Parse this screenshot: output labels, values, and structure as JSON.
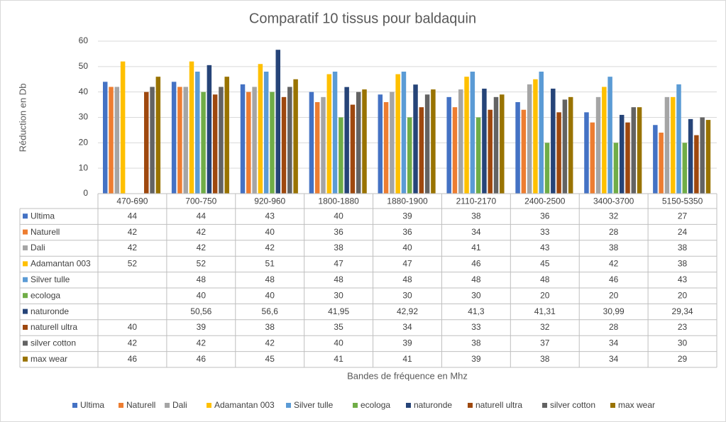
{
  "chart_data": {
    "type": "bar",
    "title": "Comparatif 10 tissus pour baldaquin",
    "y_label": "Réduction en Db",
    "x_label": "Bandes de fréquence en Mhz",
    "categories": [
      "470-690",
      "700-750",
      "920-960",
      "1800-1880",
      "1880-1900",
      "2110-2170",
      "2400-2500",
      "3400-3700",
      "5150-5350"
    ],
    "ylim": [
      0,
      60
    ],
    "yticks": [
      0,
      10,
      20,
      30,
      40,
      50,
      60
    ],
    "grid": true,
    "legend": "bottom",
    "series": [
      {
        "name": "Ultima",
        "color": "#4472c4",
        "values": [
          44,
          44,
          43,
          40,
          39,
          38,
          36,
          32,
          27
        ]
      },
      {
        "name": "Naturell",
        "color": "#ed7d31",
        "values": [
          42,
          42,
          40,
          36,
          36,
          34,
          33,
          28,
          24
        ]
      },
      {
        "name": "Dali",
        "color": "#a5a5a5",
        "values": [
          42,
          42,
          42,
          38,
          40,
          41,
          43,
          38,
          38
        ]
      },
      {
        "name": "Adamantan 003",
        "color": "#ffc000",
        "values": [
          52,
          52,
          51,
          47,
          47,
          46,
          45,
          42,
          38
        ]
      },
      {
        "name": "Silver tulle",
        "color": "#5b9bd5",
        "values": [
          null,
          48,
          48,
          48,
          48,
          48,
          48,
          46,
          43
        ]
      },
      {
        "name": "ecologa",
        "color": "#70ad47",
        "values": [
          null,
          40,
          40,
          30,
          30,
          30,
          20,
          20,
          20
        ]
      },
      {
        "name": "naturonde",
        "color": "#264478",
        "values": [
          null,
          50.56,
          56.6,
          41.95,
          42.92,
          41.3,
          41.31,
          30.99,
          29.34
        ],
        "value_labels": [
          null,
          "50,56",
          "56,6",
          "41,95",
          "42,92",
          "41,3",
          "41,31",
          "30,99",
          "29,34"
        ]
      },
      {
        "name": "naturell ultra",
        "color": "#9e480e",
        "values": [
          40,
          39,
          38,
          35,
          34,
          33,
          32,
          28,
          23
        ]
      },
      {
        "name": "silver cotton",
        "color": "#636363",
        "values": [
          42,
          42,
          42,
          40,
          39,
          38,
          37,
          34,
          30
        ]
      },
      {
        "name": "max wear",
        "color": "#997300",
        "values": [
          46,
          46,
          45,
          41,
          41,
          39,
          38,
          34,
          29
        ]
      }
    ]
  }
}
